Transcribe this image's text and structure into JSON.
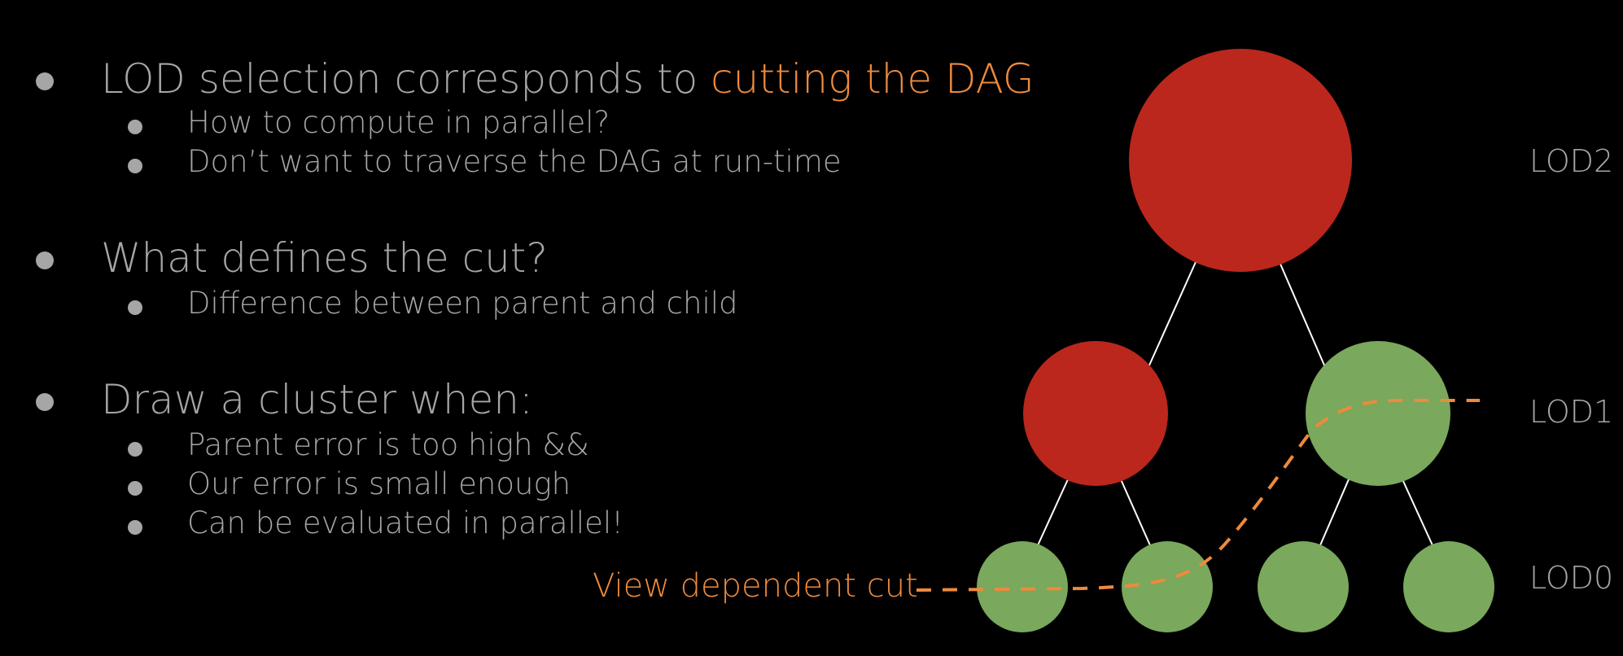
{
  "bullets": [
    {
      "text": "LOD selection corresponds to ",
      "highlight": "cutting the DAG",
      "sub": [
        "How to compute in parallel?",
        "Don’t want to traverse the DAG at run-time"
      ]
    },
    {
      "text": "What defines the cut?",
      "sub": [
        "Difference between parent and child"
      ]
    },
    {
      "text": "Draw a cluster when:",
      "sub": [
        "Parent error is too high &&",
        "Our error is small enough",
        "Can be evaluated in parallel!"
      ]
    }
  ],
  "diagram": {
    "lod_labels": [
      "LOD2",
      "LOD1",
      "LOD0"
    ],
    "cut_label": "View dependent cut",
    "colors": {
      "background": "#000000",
      "selected_node": "#bb271c",
      "drawn_node": "#7aa85c",
      "edge": "#ffffff",
      "cut": "#ee8a3c",
      "text": "#a6a6a6"
    },
    "nodes": [
      {
        "id": "lod2-root",
        "level": "LOD2",
        "state": "red"
      },
      {
        "id": "lod1-left",
        "level": "LOD1",
        "state": "red"
      },
      {
        "id": "lod1-right",
        "level": "LOD1",
        "state": "green"
      },
      {
        "id": "lod0-1",
        "level": "LOD0",
        "state": "green"
      },
      {
        "id": "lod0-2",
        "level": "LOD0",
        "state": "green"
      },
      {
        "id": "lod0-3",
        "level": "LOD0",
        "state": "green"
      },
      {
        "id": "lod0-4",
        "level": "LOD0",
        "state": "green"
      }
    ]
  }
}
